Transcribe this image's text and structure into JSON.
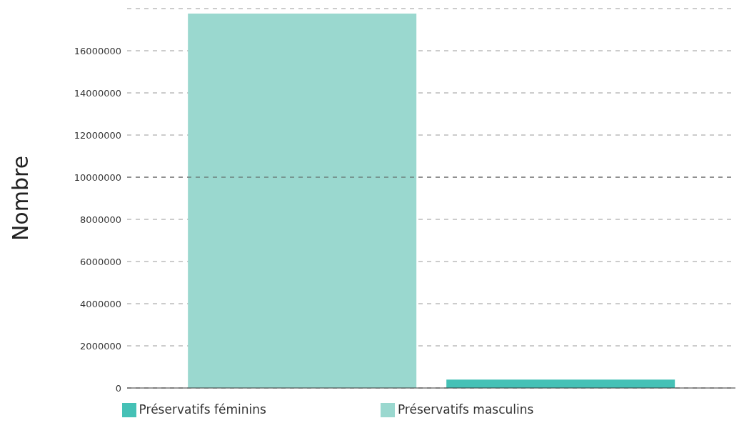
{
  "chart_data": {
    "type": "bar",
    "ylabel": "Nombre",
    "categories": [
      null
    ],
    "series": [
      {
        "name": "Préservatifs masculins",
        "color": "#9ad8cf",
        "values": [
          17760000
        ]
      },
      {
        "name": "Préservatifs féminins",
        "color": "#45c1b6",
        "values": [
          400000
        ]
      }
    ],
    "ylim": [
      0,
      18000000
    ],
    "yticks": [
      0,
      2000000,
      4000000,
      6000000,
      8000000,
      10000000,
      12000000,
      14000000,
      16000000
    ],
    "grid": "y",
    "legend": "bottom",
    "ref_lines": [
      {
        "axis": "y",
        "value": 10000000,
        "color": "#555555",
        "line_style": "dashed"
      }
    ]
  }
}
